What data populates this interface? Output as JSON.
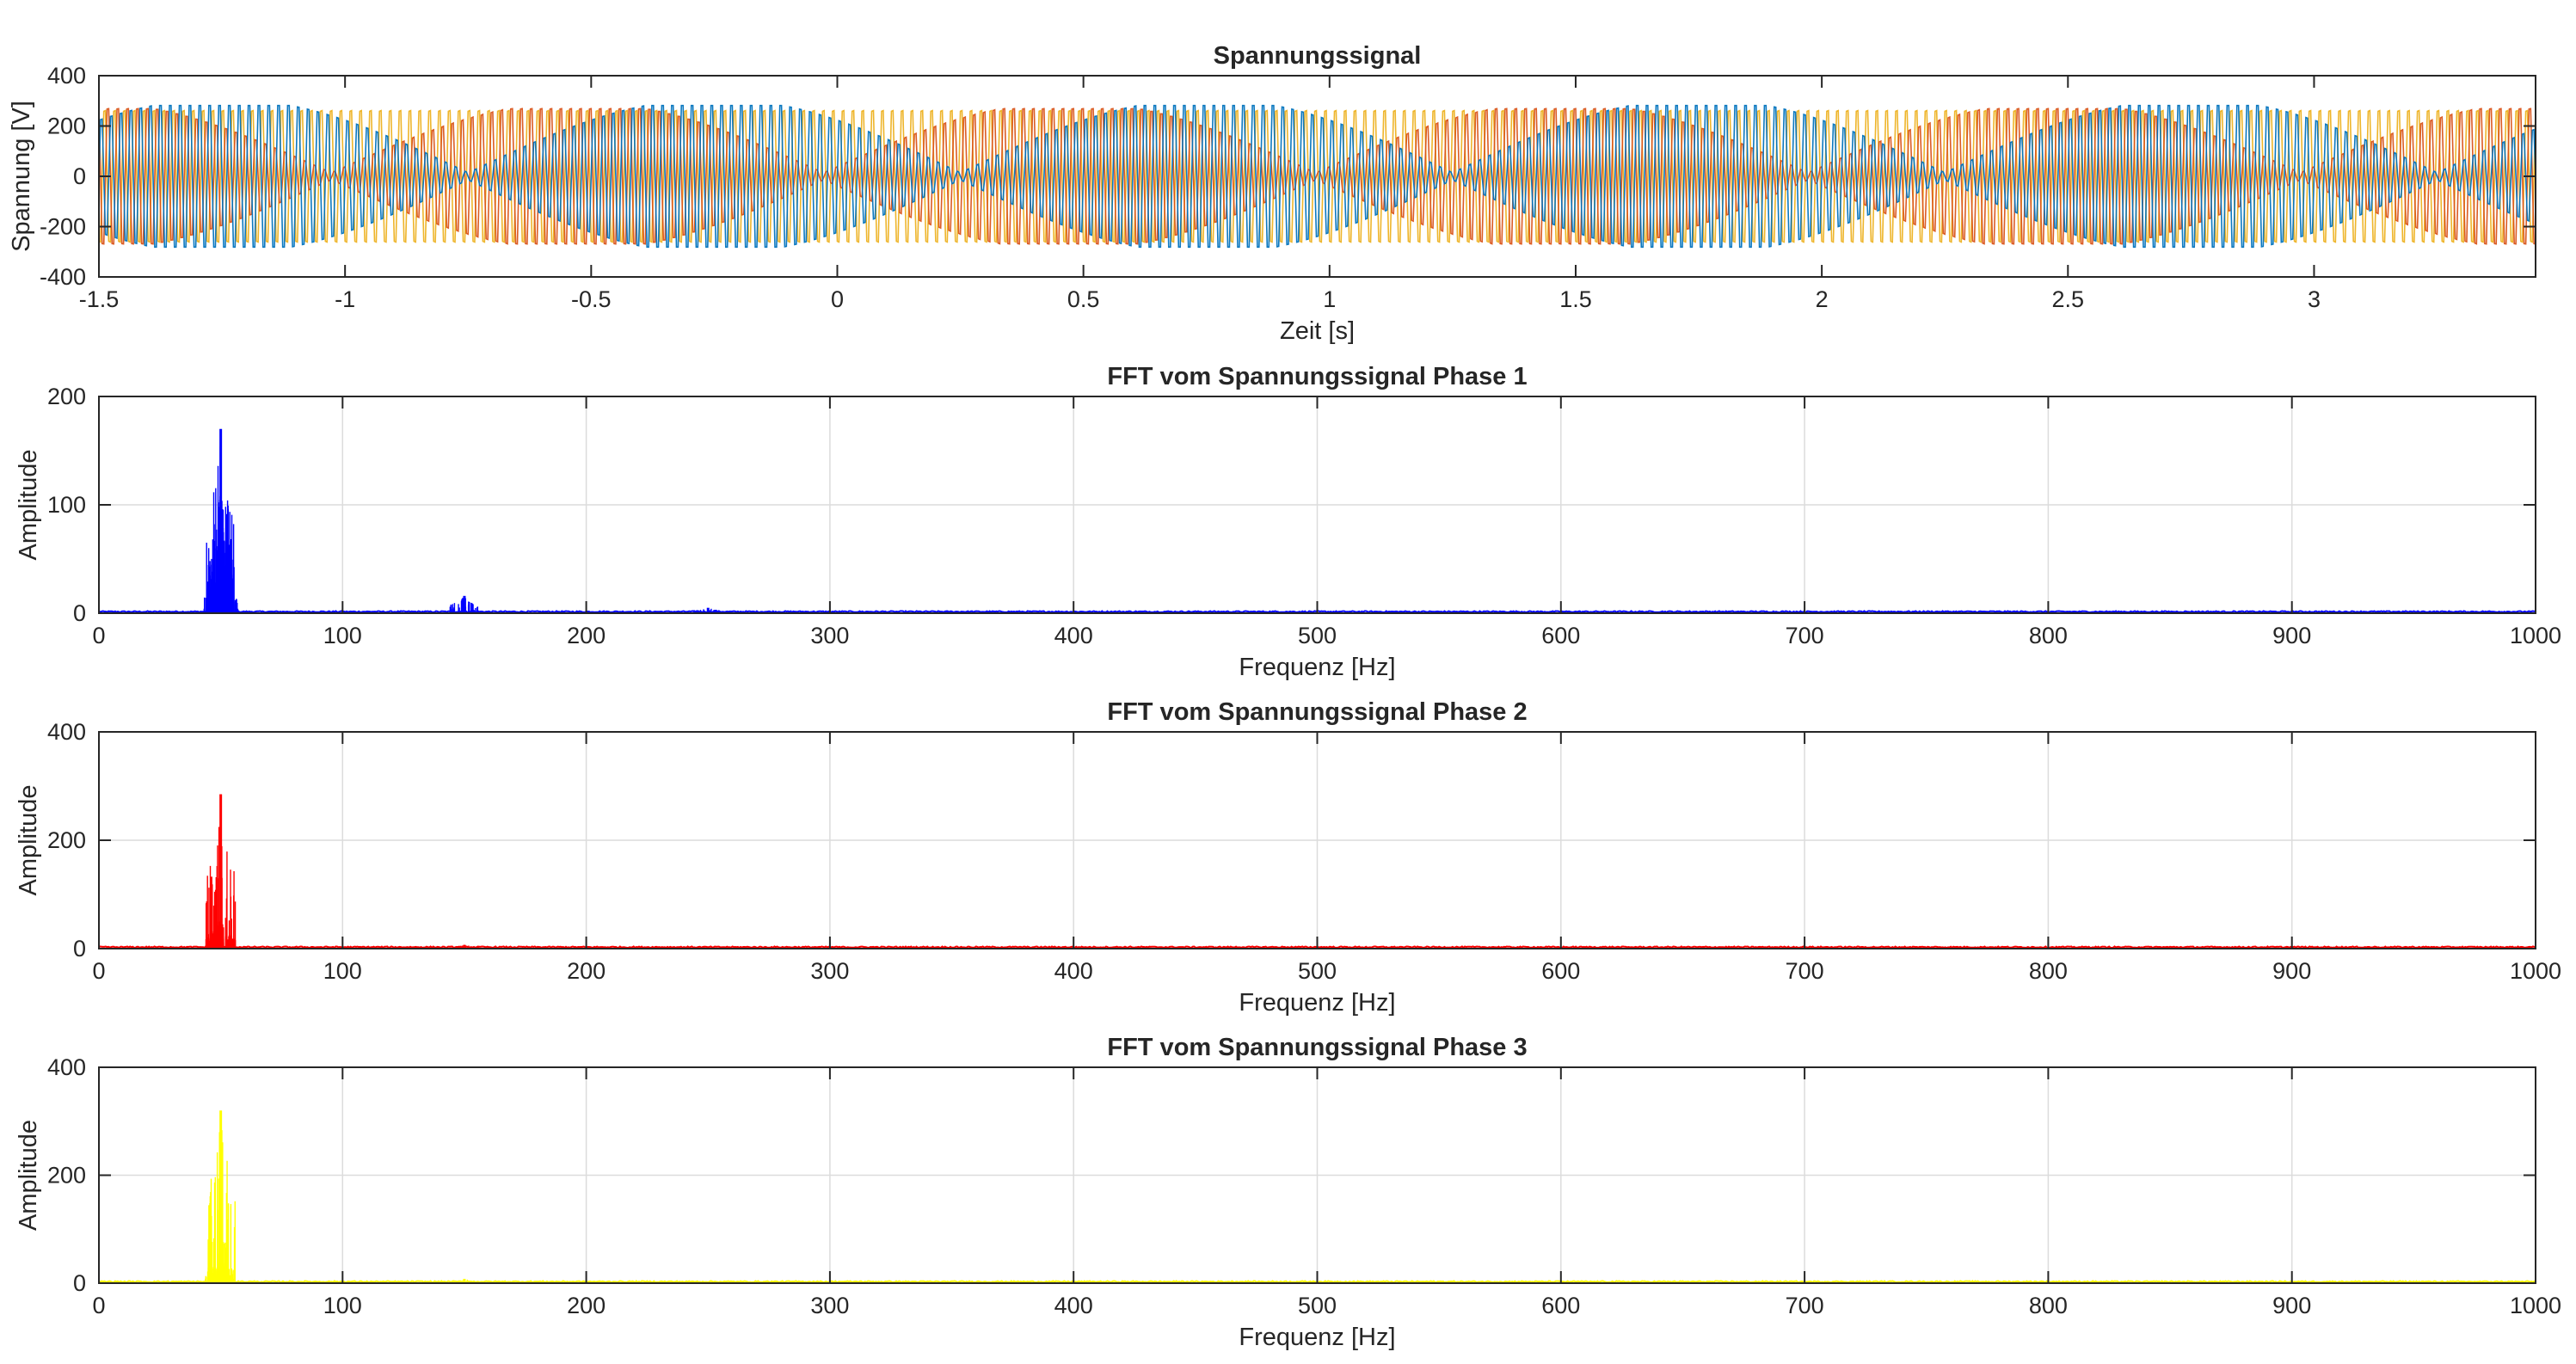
{
  "colors": {
    "background": "#ffffff",
    "axis": "#262626",
    "grid": "#dcdcdc",
    "phase1_fft": "#0000ff",
    "phase2_fft": "#ff0000",
    "phase3_fft": "#ffff00",
    "time_series": [
      "#0072bd",
      "#d95319",
      "#edb120"
    ]
  },
  "chart_data": [
    {
      "type": "line",
      "title": "Spannungssignal",
      "xlabel": "Zeit [s]",
      "ylabel": "Spannung [V]",
      "xlim": [
        -1.5,
        3.45
      ],
      "ylim": [
        -400,
        400
      ],
      "xticks": [
        -1.5,
        -1,
        -0.5,
        0,
        0.5,
        1,
        1.5,
        2,
        2.5,
        3
      ],
      "xtick_labels": [
        "-1.5",
        "-1",
        "-0.5",
        "0",
        "0.5",
        "1",
        "1.5",
        "2",
        "2.5",
        "3"
      ],
      "yticks": [
        -400,
        -200,
        0,
        200,
        400
      ],
      "ytick_labels": [
        "-400",
        "-200",
        "0",
        "200",
        "400"
      ],
      "grid": false,
      "signal_frequency_hz": 50,
      "peak_amplitude": 325,
      "modulation_period_s": 1,
      "series": [
        {
          "color": "#0072bd",
          "amplitude": 325,
          "modulated": true,
          "modulation_phase_deg": 0
        },
        {
          "color": "#d95319",
          "amplitude": 310,
          "modulated": true,
          "modulation_phase_deg": 100
        },
        {
          "color": "#edb120",
          "amplitude": 300,
          "modulated": false,
          "modulation_phase_deg": 0
        }
      ]
    },
    {
      "type": "line",
      "title": "FFT vom Spannungssignal Phase 1",
      "xlabel": "Frequenz [Hz]",
      "ylabel": "Amplitude",
      "xlim": [
        0,
        1000
      ],
      "ylim": [
        0,
        200
      ],
      "xticks": [
        0,
        100,
        200,
        300,
        400,
        500,
        600,
        700,
        800,
        900,
        1000
      ],
      "xtick_labels": [
        "0",
        "100",
        "200",
        "300",
        "400",
        "500",
        "600",
        "700",
        "800",
        "900",
        "1000"
      ],
      "yticks": [
        0,
        100,
        200
      ],
      "ytick_labels": [
        "0",
        "100",
        "200"
      ],
      "grid": true,
      "color": "#0000ff",
      "peaks": [
        {
          "f": 50,
          "a": 170
        },
        {
          "f": 49.5,
          "a": 98
        },
        {
          "f": 50.5,
          "a": 96
        },
        {
          "f": 49,
          "a": 30
        },
        {
          "f": 51,
          "a": 28
        },
        {
          "f": 150,
          "a": 16
        },
        {
          "f": 250,
          "a": 5
        },
        {
          "f": 350,
          "a": 2
        }
      ]
    },
    {
      "type": "line",
      "title": "FFT vom Spannungssignal Phase 2",
      "xlabel": "Frequenz [Hz]",
      "ylabel": "Amplitude",
      "xlim": [
        0,
        1000
      ],
      "ylim": [
        0,
        400
      ],
      "xticks": [
        0,
        100,
        200,
        300,
        400,
        500,
        600,
        700,
        800,
        900,
        1000
      ],
      "xtick_labels": [
        "0",
        "100",
        "200",
        "300",
        "400",
        "500",
        "600",
        "700",
        "800",
        "900",
        "1000"
      ],
      "yticks": [
        0,
        200,
        400
      ],
      "ytick_labels": [
        "0",
        "200",
        "400"
      ],
      "grid": true,
      "color": "#ff0000",
      "peaks": [
        {
          "f": 50,
          "a": 285
        },
        {
          "f": 49.5,
          "a": 50
        },
        {
          "f": 50.5,
          "a": 45
        },
        {
          "f": 150,
          "a": 7
        },
        {
          "f": 250,
          "a": 3
        }
      ]
    },
    {
      "type": "line",
      "title": "FFT vom Spannungssignal Phase 3",
      "xlabel": "Frequenz [Hz]",
      "ylabel": "Amplitude",
      "xlim": [
        0,
        1000
      ],
      "ylim": [
        0,
        400
      ],
      "xticks": [
        0,
        100,
        200,
        300,
        400,
        500,
        600,
        700,
        800,
        900,
        1000
      ],
      "xtick_labels": [
        "0",
        "100",
        "200",
        "300",
        "400",
        "500",
        "600",
        "700",
        "800",
        "900",
        "1000"
      ],
      "yticks": [
        0,
        200,
        400
      ],
      "ytick_labels": [
        "0",
        "200",
        "400"
      ],
      "grid": true,
      "color": "#ffff00",
      "peaks": [
        {
          "f": 50,
          "a": 320
        },
        {
          "f": 49.5,
          "a": 55
        },
        {
          "f": 50.5,
          "a": 50
        },
        {
          "f": 150,
          "a": 8
        },
        {
          "f": 250,
          "a": 3
        }
      ]
    }
  ]
}
